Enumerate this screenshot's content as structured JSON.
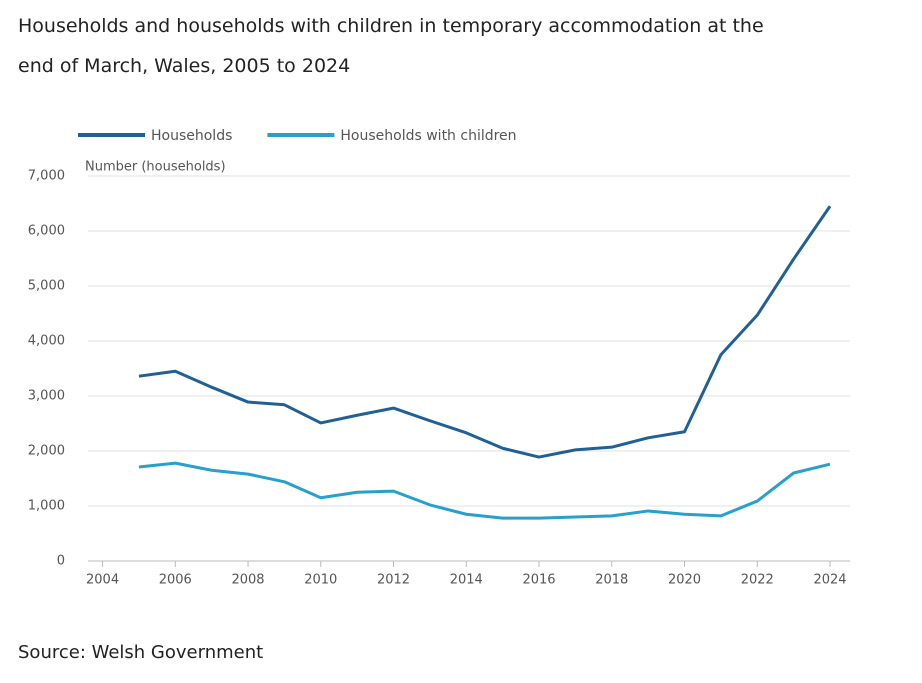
{
  "chart_data": {
    "type": "line",
    "title": "Households and households with children in temporary accommodation at the end of March, Wales, 2005 to 2024",
    "y_label": "Number (households)",
    "source": "Source: Welsh Government",
    "x": [
      2005,
      2006,
      2007,
      2008,
      2009,
      2010,
      2011,
      2012,
      2013,
      2014,
      2015,
      2016,
      2017,
      2018,
      2019,
      2020,
      2021,
      2022,
      2023,
      2024
    ],
    "series": [
      {
        "name": "Households",
        "color": "#206095",
        "values": [
          3360,
          3450,
          3160,
          2890,
          2840,
          2510,
          2650,
          2780,
          2550,
          2330,
          2050,
          1890,
          2020,
          2070,
          2240,
          2350,
          3750,
          4470,
          5490,
          6450
        ]
      },
      {
        "name": "Households with children",
        "color": "#27a0cc",
        "values": [
          1710,
          1780,
          1650,
          1580,
          1440,
          1150,
          1250,
          1270,
          1020,
          850,
          780,
          780,
          800,
          820,
          910,
          850,
          820,
          1090,
          1600,
          1760
        ]
      }
    ],
    "xlim": [
      2003.6,
      2024.55
    ],
    "xticks": [
      2004,
      2006,
      2008,
      2010,
      2012,
      2014,
      2016,
      2018,
      2020,
      2022,
      2024
    ],
    "ylim": [
      0,
      7000
    ],
    "yticks": [
      0,
      {
        "value": 1000,
        "label": "1,000"
      },
      {
        "value": 2000,
        "label": "2,000"
      },
      {
        "value": 3000,
        "label": "3,000"
      },
      {
        "value": 4000,
        "label": "4,000"
      },
      {
        "value": 5000,
        "label": "5,000"
      },
      {
        "value": 6000,
        "label": "6,000"
      },
      {
        "value": 7000,
        "label": "7,000"
      }
    ],
    "grid": true,
    "legend": "top-left"
  }
}
